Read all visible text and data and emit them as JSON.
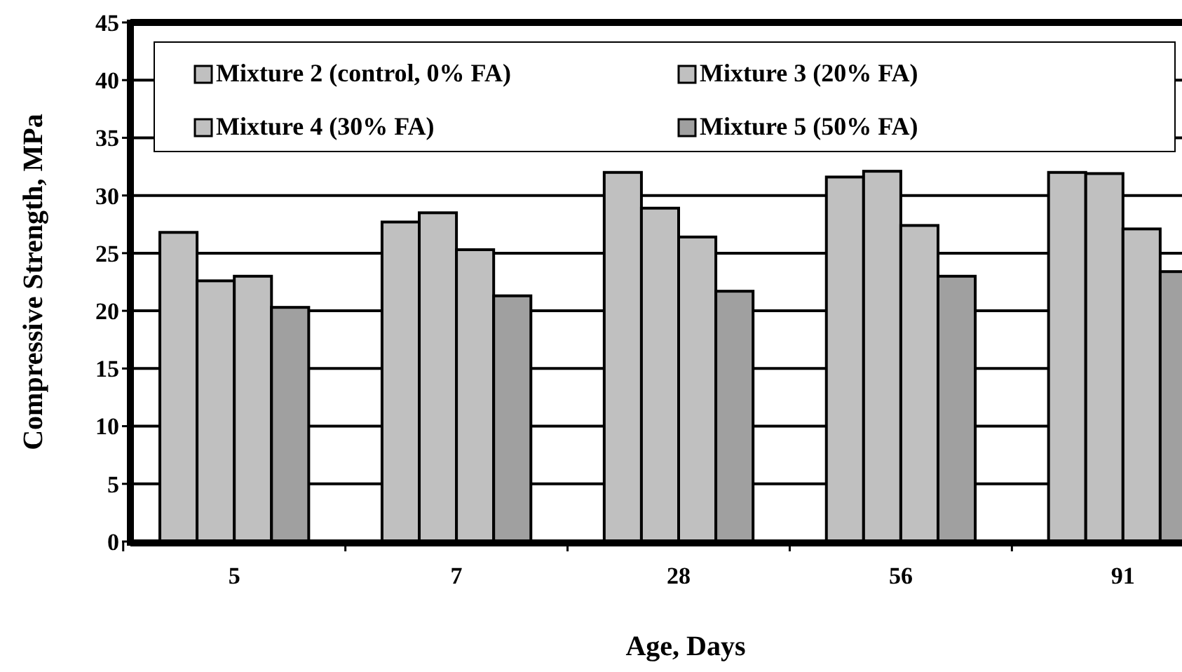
{
  "chart_data": {
    "type": "bar",
    "xlabel": "Age, Days",
    "ylabel": "Compressive Strength, MPa",
    "categories": [
      "5",
      "7",
      "28",
      "56",
      "91"
    ],
    "series": [
      {
        "name": "Mixture 2 (control, 0% FA)",
        "color": "#c0c0c0",
        "values": [
          26.8,
          27.7,
          32.0,
          31.6,
          32.0
        ]
      },
      {
        "name": "Mixture 3 (20% FA)",
        "color": "#c0c0c0",
        "values": [
          22.6,
          28.5,
          28.9,
          32.1,
          31.9
        ]
      },
      {
        "name": "Mixture 4 (30% FA)",
        "color": "#c0c0c0",
        "values": [
          23.0,
          25.3,
          26.4,
          27.4,
          27.1
        ]
      },
      {
        "name": "Mixture 5 (50% FA)",
        "color": "#a0a0a0",
        "values": [
          20.3,
          21.3,
          21.7,
          23.0,
          23.4
        ]
      }
    ],
    "ylim": [
      0,
      45
    ],
    "yticks": [
      0,
      5,
      10,
      15,
      20,
      25,
      30,
      35,
      40,
      45
    ],
    "grid": "y",
    "legend": "top"
  }
}
